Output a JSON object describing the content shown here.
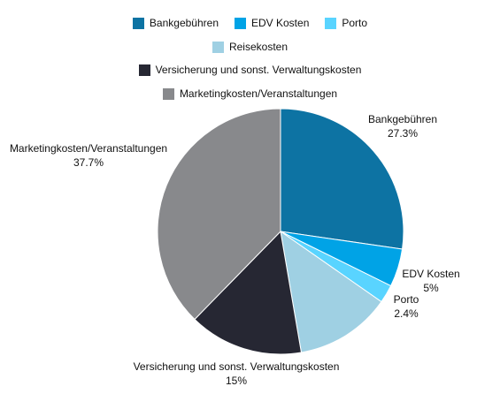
{
  "chart_data": {
    "type": "pie",
    "title": "",
    "legend_position": "top",
    "series": [
      {
        "name": "Bankgebühren",
        "value": 27.3,
        "label": "27.3%",
        "color": "#0d73a3"
      },
      {
        "name": "EDV Kosten",
        "value": 5,
        "label": "5%",
        "color": "#00a3e6"
      },
      {
        "name": "Porto",
        "value": 2.4,
        "label": "2.4%",
        "color": "#59d4ff"
      },
      {
        "name": "Reisekosten",
        "value": 12.6,
        "label": "",
        "color": "#9fd0e3"
      },
      {
        "name": "Versicherung und sonst. Verwaltungskosten",
        "value": 15,
        "label": "15%",
        "color": "#262733"
      },
      {
        "name": "Marketingkosten/Veranstaltungen",
        "value": 37.7,
        "label": "37.7%",
        "color": "#88898c"
      }
    ]
  }
}
